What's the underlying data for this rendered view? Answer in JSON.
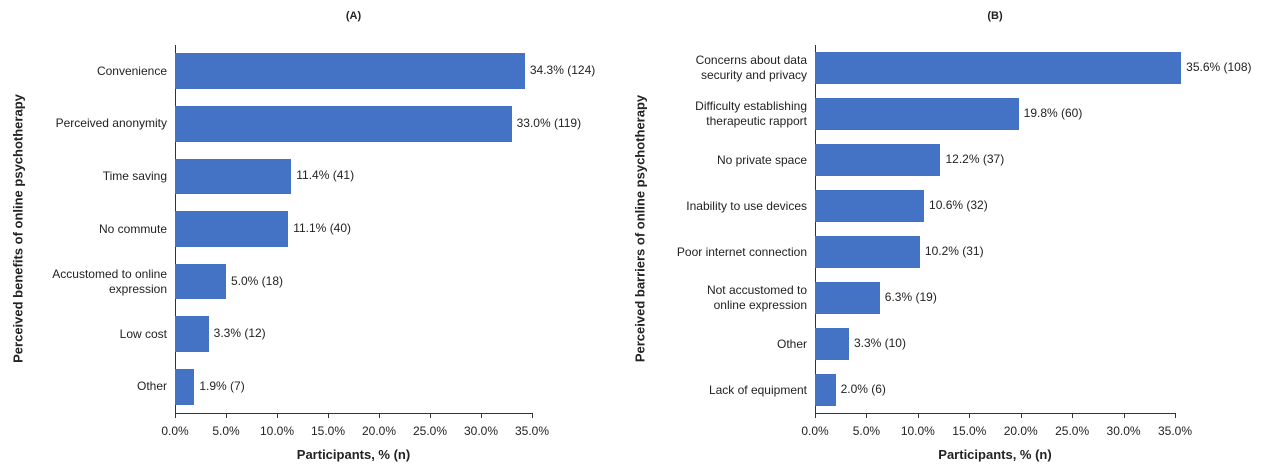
{
  "chart_data": [
    {
      "type": "barh",
      "title": "(A)",
      "x_label": "Participants, % (n)",
      "y_label": "Perceived benefits of online psychotherapy",
      "categories": [
        "Convenience",
        "Perceived anonymity",
        "Time saving",
        "No commute",
        "Accustomed to online\nexpression",
        "Low cost",
        "Other"
      ],
      "values": [
        34.3,
        33.0,
        11.4,
        11.1,
        5.0,
        3.3,
        1.9
      ],
      "value_labels": [
        "34.3% (124)",
        "33.0% (119)",
        "11.4% (41)",
        "11.1% (40)",
        "5.0% (18)",
        "3.3% (12)",
        "1.9% (7)"
      ],
      "color": "#4472c4",
      "xlim": [
        0,
        35
      ],
      "xticks": [
        {
          "value": 0,
          "label": "0.0%"
        },
        {
          "value": 5,
          "label": "5.0%"
        },
        {
          "value": 10,
          "label": "10.0%"
        },
        {
          "value": 15,
          "label": "15.0%"
        },
        {
          "value": 20,
          "label": "20.0%"
        },
        {
          "value": 25,
          "label": "25.0%"
        },
        {
          "value": 30,
          "label": "30.0%"
        },
        {
          "value": 35,
          "label": "35.0%"
        }
      ]
    },
    {
      "type": "barh",
      "title": "(B)",
      "x_label": "Participants, % (n)",
      "y_label": "Perceived barriers of online psychotherapy",
      "categories": [
        "Concerns about data\nsecurity and privacy",
        "Difficulty establishing\ntherapeutic rapport",
        "No private space",
        "Inability to use devices",
        "Poor internet connection",
        "Not accustomed to\nonline expression",
        "Other",
        "Lack of equipment"
      ],
      "values": [
        35.6,
        19.8,
        12.2,
        10.6,
        10.2,
        6.3,
        3.3,
        2.0
      ],
      "value_labels": [
        "35.6% (108)",
        "19.8% (60)",
        "12.2% (37)",
        "10.6% (32)",
        "10.2% (31)",
        "6.3% (19)",
        "3.3% (10)",
        "2.0% (6)"
      ],
      "color": "#4472c4",
      "xlim": [
        0,
        35
      ],
      "xticks": [
        {
          "value": 0,
          "label": "0.0%"
        },
        {
          "value": 5,
          "label": "5.0%"
        },
        {
          "value": 10,
          "label": "10.0%"
        },
        {
          "value": 15,
          "label": "15.0%"
        },
        {
          "value": 20,
          "label": "20.0%"
        },
        {
          "value": 25,
          "label": "25.0%"
        },
        {
          "value": 30,
          "label": "30.0%"
        },
        {
          "value": 35,
          "label": "35.0%"
        }
      ]
    }
  ]
}
